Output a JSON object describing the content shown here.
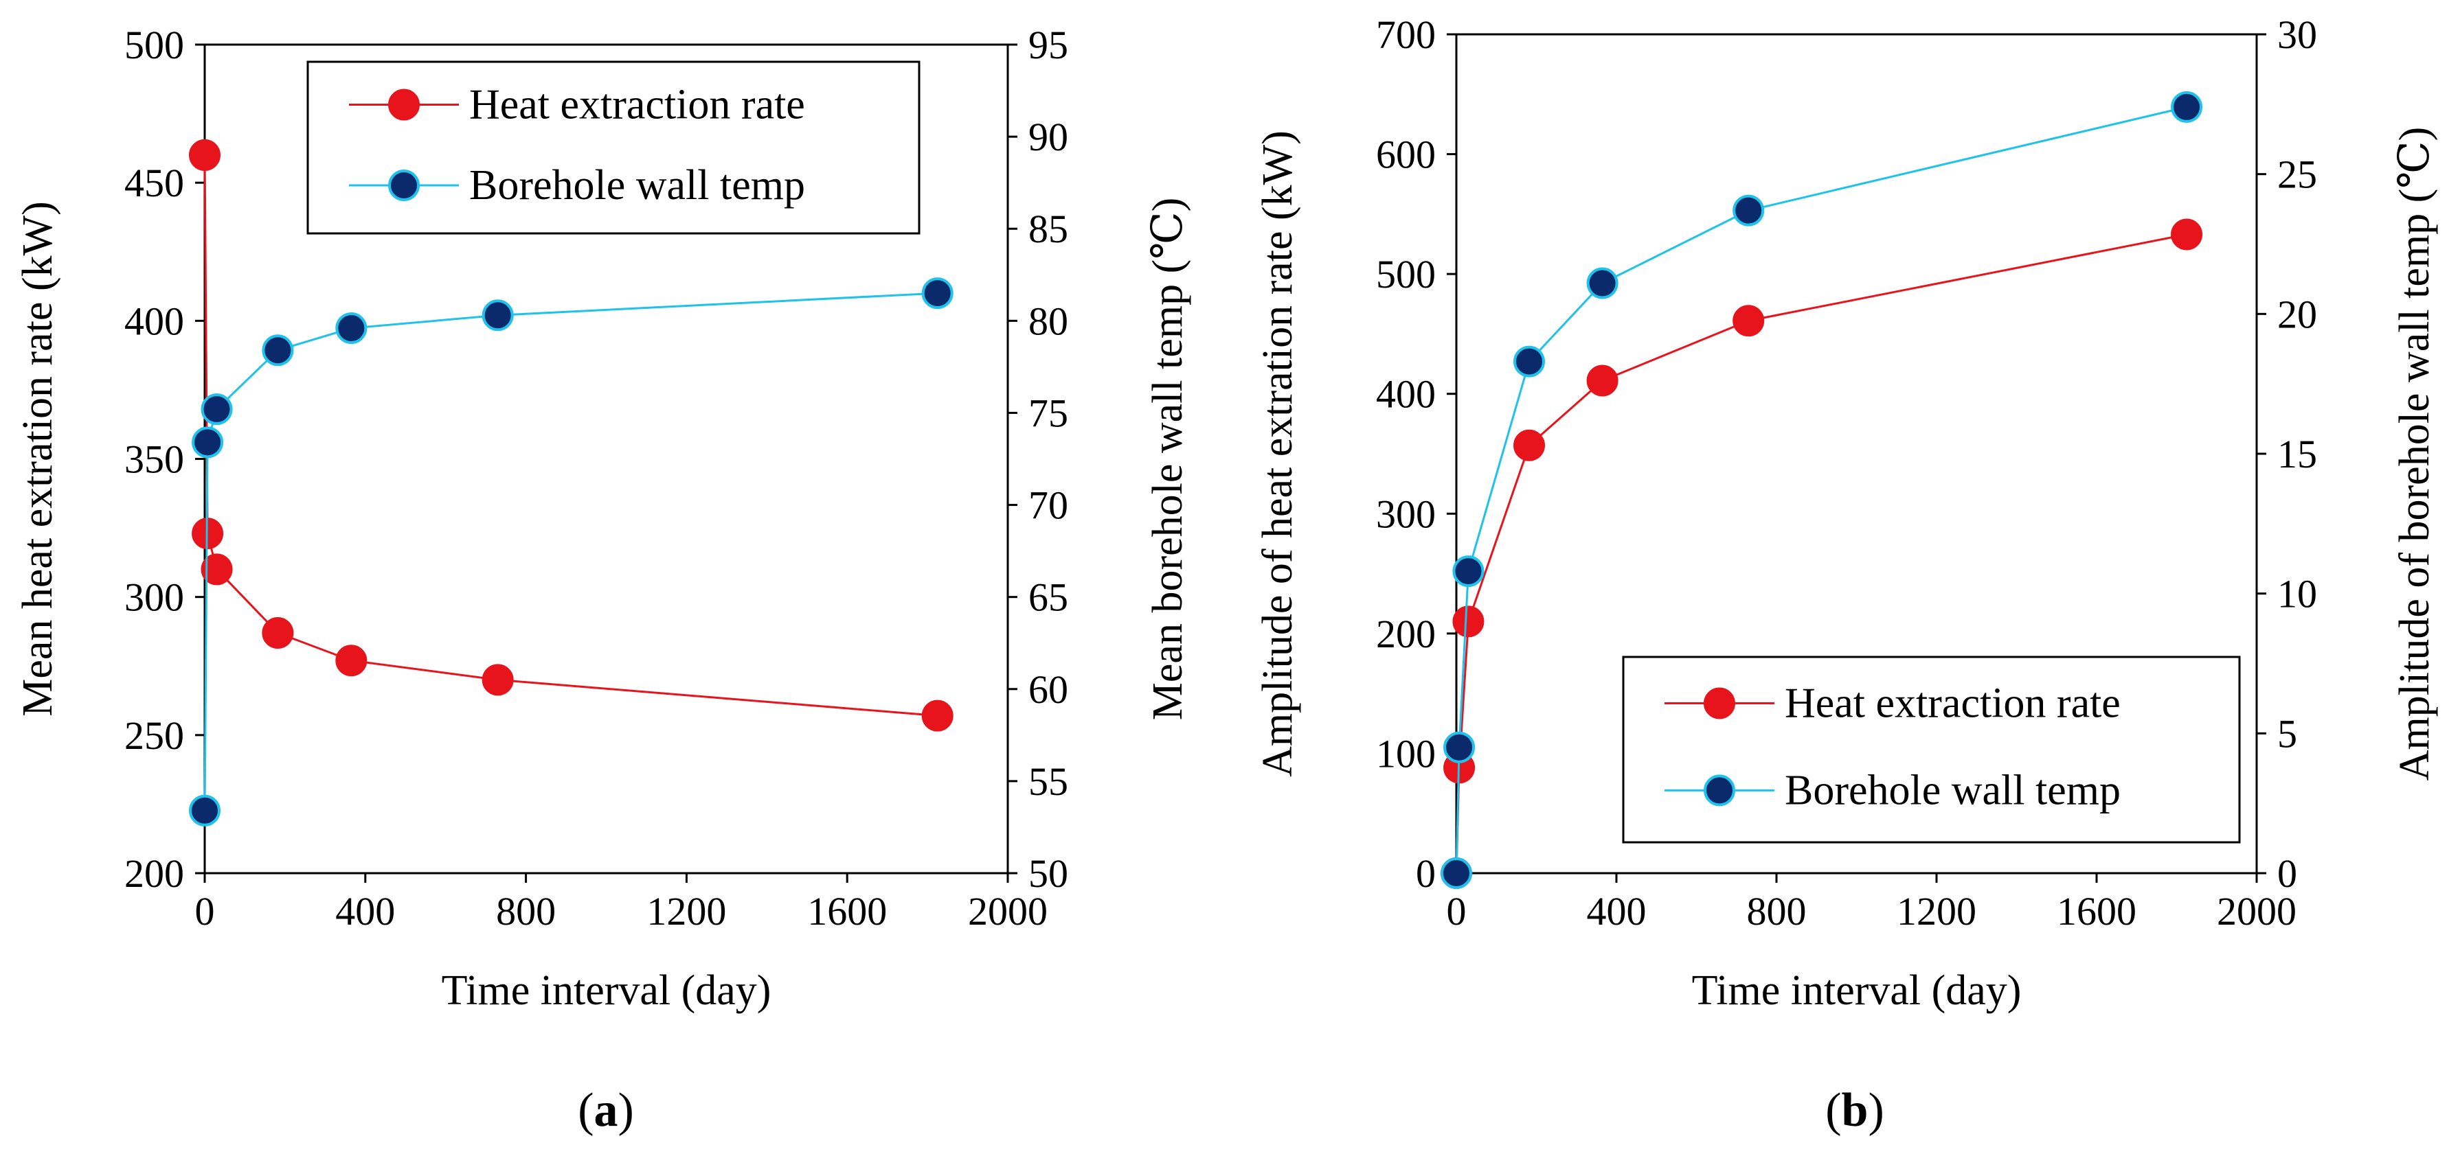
{
  "colors": {
    "heat": "#e8141c",
    "heat_marker_fill": "#e8141c",
    "temp": "#1ec2ea",
    "temp_marker_fill": "#0b2a6b",
    "axis": "#000000"
  },
  "chart_data": [
    {
      "type": "line",
      "panel_label": "(a)",
      "panel_letter": "a",
      "xlabel": "Time interval (day)",
      "ylabel_left": "Mean heat extration rate (kW)",
      "ylabel_right": "Mean borehole wall temp (℃)",
      "xlim": [
        0,
        2000
      ],
      "xticks": [
        0,
        400,
        800,
        1200,
        1600,
        2000
      ],
      "ylim_left": [
        200,
        500
      ],
      "yticks_left": [
        200,
        250,
        300,
        350,
        400,
        450,
        500
      ],
      "ylim_right": [
        50,
        95
      ],
      "yticks_right": [
        50,
        55,
        60,
        65,
        70,
        75,
        80,
        85,
        90,
        95
      ],
      "legend_position": "top-right",
      "series": [
        {
          "name": "Heat extraction rate",
          "axis": "left",
          "x": [
            0,
            7,
            30,
            182,
            365,
            730,
            1825
          ],
          "y": [
            460,
            323,
            310,
            287,
            277,
            270,
            257
          ]
        },
        {
          "name": "Borehole wall temp",
          "axis": "right",
          "x": [
            0,
            7,
            30,
            182,
            365,
            730,
            1825
          ],
          "y": [
            53.4,
            73.4,
            75.2,
            78.4,
            79.6,
            80.3,
            81.5
          ]
        }
      ]
    },
    {
      "type": "line",
      "panel_label": "(b)",
      "panel_letter": "b",
      "xlabel": "Time interval (day)",
      "ylabel_left": "Amplitude of heat extration rate (kW)",
      "ylabel_right": "Amplitude of borehole wall temp (℃)",
      "xlim": [
        0,
        2000
      ],
      "xticks": [
        0,
        400,
        800,
        1200,
        1600,
        2000
      ],
      "ylim_left": [
        0,
        700
      ],
      "yticks_left": [
        0,
        100,
        200,
        300,
        400,
        500,
        600,
        700
      ],
      "ylim_right": [
        0,
        30
      ],
      "yticks_right": [
        0,
        5,
        10,
        15,
        20,
        25,
        30
      ],
      "legend_position": "bottom-right",
      "series": [
        {
          "name": "Heat extraction rate",
          "axis": "left",
          "x": [
            0,
            7,
            30,
            182,
            365,
            730,
            1825
          ],
          "y": [
            0,
            88,
            210,
            357,
            411,
            461,
            533
          ]
        },
        {
          "name": "Borehole wall temp",
          "axis": "right",
          "x": [
            0,
            7,
            30,
            182,
            365,
            730,
            1825
          ],
          "y": [
            0,
            4.5,
            10.8,
            18.3,
            21.1,
            23.7,
            27.4
          ]
        }
      ]
    }
  ]
}
